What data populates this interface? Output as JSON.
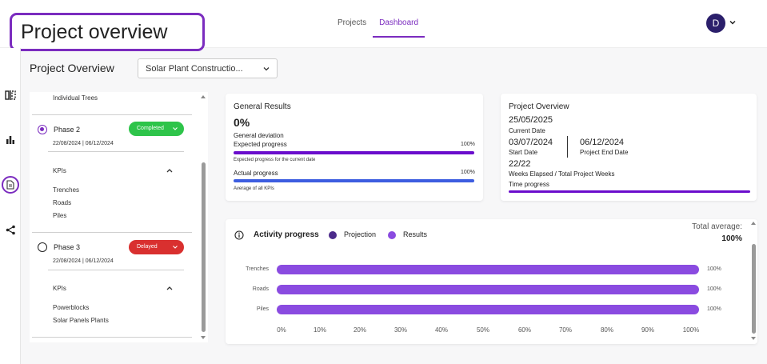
{
  "header": {
    "app_title": "Project overview",
    "tabs": [
      {
        "label": "Projects",
        "active": false
      },
      {
        "label": "Dashboard",
        "active": true
      }
    ],
    "user_initial": "D"
  },
  "rail": {
    "icons": [
      "split-view-icon",
      "bar-chart-icon",
      "document-icon",
      "share-icon"
    ],
    "active": "document-icon"
  },
  "page": {
    "heading": "Project Overview",
    "project_select": "Solar Plant Constructio..."
  },
  "phases": {
    "top_item": "Individual Trees",
    "list": [
      {
        "name": "Phase 2",
        "dates": "22/08/2024 | 06/12/2024",
        "status": "Completed",
        "status_color": "#2ec44a",
        "selected": true,
        "kpis_label": "KPIs",
        "kpis": [
          "Trenches",
          "Roads",
          "Piles"
        ]
      },
      {
        "name": "Phase 3",
        "dates": "22/08/2024 | 06/12/2024",
        "status": "Delayed",
        "status_color": "#d9302f",
        "selected": false,
        "kpis_label": "KPIs",
        "kpis": [
          "Powerblocks",
          "Solar Panels Plants"
        ]
      }
    ]
  },
  "general_results": {
    "title": "General Results",
    "deviation_value": "0%",
    "deviation_label": "General deviation",
    "expected_label": "Expected progress",
    "expected_pct": "100%",
    "expected_fraction": 1.0,
    "expected_caption": "Expected progress for the current date",
    "actual_label": "Actual progress",
    "actual_pct": "100%",
    "actual_fraction": 1.0,
    "actual_caption": "Average of all KPIs",
    "expected_color": "#6a0dcc",
    "actual_color": "#3d5de0"
  },
  "project_overview": {
    "title": "Project Overview",
    "current_date": "25/05/2025",
    "current_date_label": "Current Date",
    "start_date": "03/07/2024",
    "start_date_label": "Start Date",
    "end_date": "06/12/2024",
    "end_date_label": "Project End Date",
    "weeks": "22/22",
    "weeks_label": "Weeks Elapsed / Total Project Weeks",
    "time_progress_label": "Time progress",
    "time_progress_fraction": 1.0,
    "accent": "#6a0dcc"
  },
  "activity": {
    "title": "Activity progress",
    "legend": [
      {
        "label": "Projection",
        "color": "#4b2a8a"
      },
      {
        "label": "Results",
        "color": "#8a4be0"
      }
    ],
    "total_label": "Total average:",
    "total_value": "100%",
    "chart_data": {
      "type": "bar",
      "orientation": "horizontal",
      "categories": [
        "Trenches",
        "Roads",
        "Piles"
      ],
      "series": [
        {
          "name": "Results",
          "values": [
            100,
            100,
            100
          ]
        }
      ],
      "value_labels": [
        "100%",
        "100%",
        "100%"
      ],
      "xlim": [
        0,
        100
      ],
      "xticks": [
        "0%",
        "10%",
        "20%",
        "30%",
        "40%",
        "50%",
        "60%",
        "70%",
        "80%",
        "90%",
        "100%"
      ]
    }
  }
}
